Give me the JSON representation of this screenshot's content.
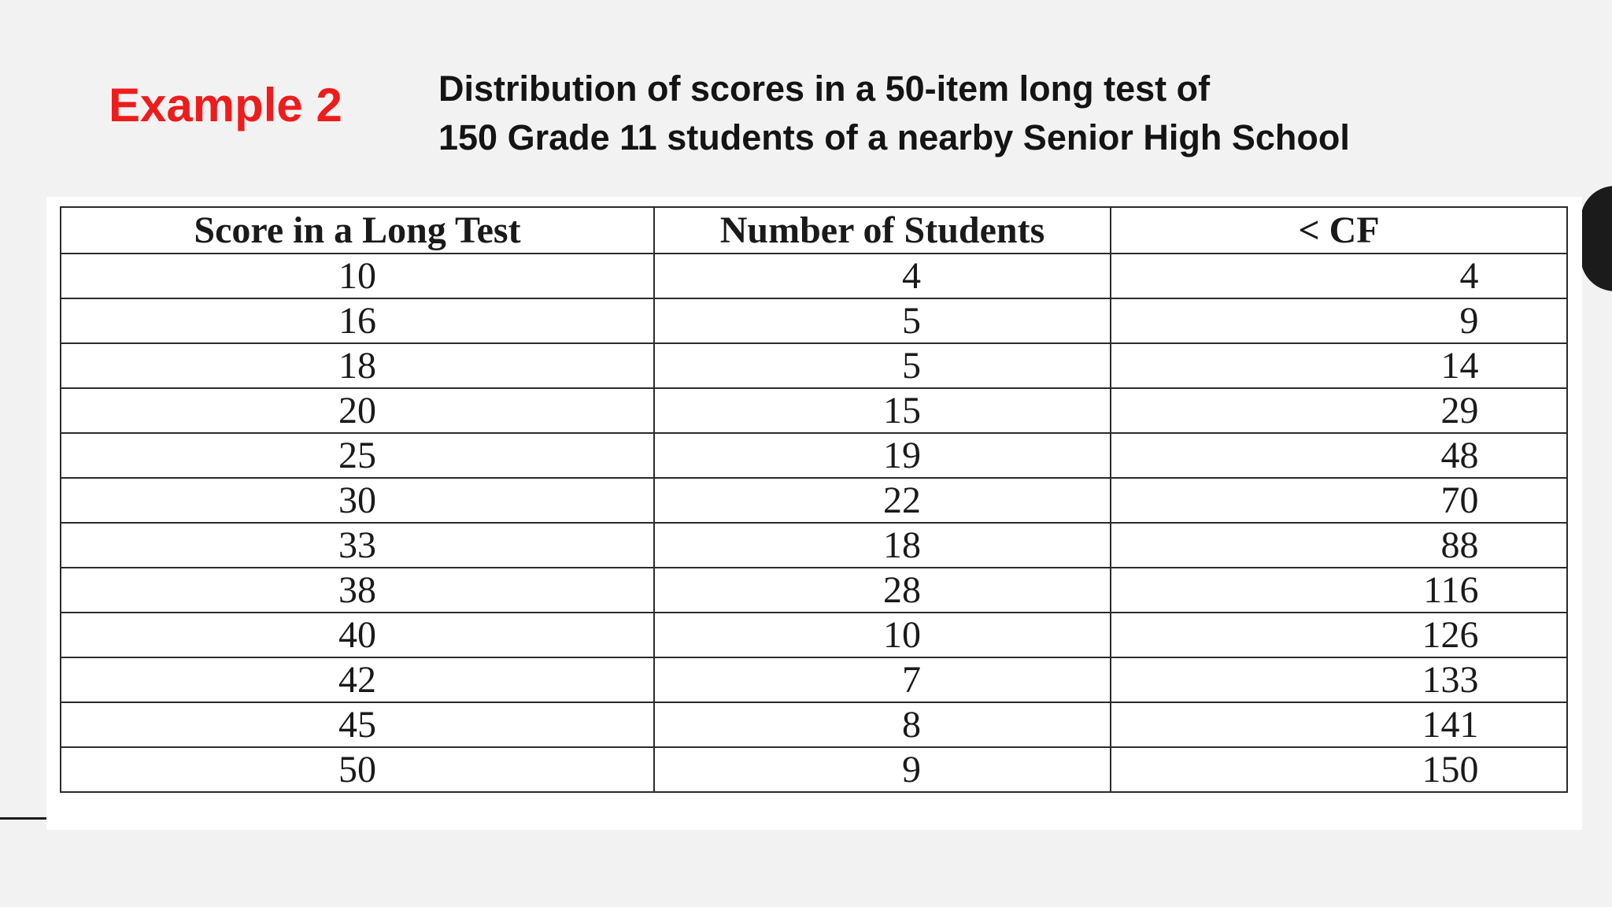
{
  "slide": {
    "example_label": "Example 2",
    "subtitle_line1": "Distribution of scores in a 50-item long test of",
    "subtitle_line2": "150 Grade 11 students of a nearby Senior High School",
    "accent_color": "#ee1c1c"
  },
  "table": {
    "headers": [
      "Score in a Long Test",
      "Number of Students",
      "< CF"
    ],
    "rows": [
      [
        "10",
        "4",
        "4"
      ],
      [
        "16",
        "5",
        "9"
      ],
      [
        "18",
        "5",
        "14"
      ],
      [
        "20",
        "15",
        "29"
      ],
      [
        "25",
        "19",
        "48"
      ],
      [
        "30",
        "22",
        "70"
      ],
      [
        "33",
        "18",
        "88"
      ],
      [
        "38",
        "28",
        "116"
      ],
      [
        "40",
        "10",
        "126"
      ],
      [
        "42",
        "7",
        "133"
      ],
      [
        "45",
        "8",
        "141"
      ],
      [
        "50",
        "9",
        "150"
      ]
    ]
  }
}
